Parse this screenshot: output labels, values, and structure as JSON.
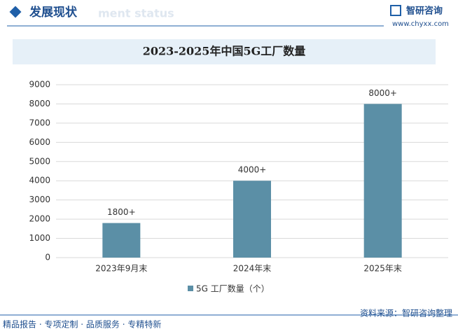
{
  "header": {
    "title": "发展现状",
    "subtitle": "ment status",
    "logo": "智研咨询",
    "url": "www.chyxx.com"
  },
  "chart_data": {
    "type": "bar",
    "title": "2023-2025年中国5G工厂数量",
    "categories": [
      "2023年9月末",
      "2024年末",
      "2025年末"
    ],
    "series": [
      {
        "name": "5G 工厂数量（个）",
        "color": "#5b8fa6",
        "values": [
          1800,
          4000,
          8000
        ],
        "value_labels": [
          "1800+",
          "4000+",
          "8000+"
        ]
      }
    ],
    "ylim": [
      0,
      9000
    ],
    "yticks": [
      0,
      1000,
      2000,
      3000,
      4000,
      5000,
      6000,
      7000,
      8000,
      9000
    ],
    "grid": true
  },
  "footer": {
    "left": "精品报告 · 专项定制 · 品质服务 · 专精特新",
    "right": "资料来源：智研咨询整理"
  }
}
